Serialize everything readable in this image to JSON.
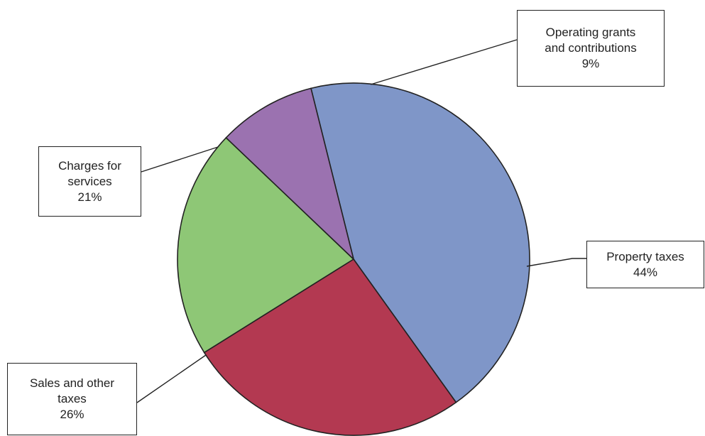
{
  "chart_data": {
    "type": "pie",
    "title": "",
    "start_angle_deg": 104,
    "direction": "clockwise",
    "slices": [
      {
        "label_lines": [
          "Property taxes",
          "44%"
        ],
        "value": 44,
        "color": "#7f96c8"
      },
      {
        "label_lines": [
          "Sales and other",
          "taxes",
          "26%"
        ],
        "value": 26,
        "color": "#b33951"
      },
      {
        "label_lines": [
          "Charges for",
          "services",
          "21%"
        ],
        "value": 21,
        "color": "#8ec776"
      },
      {
        "label_lines": [
          "Operating grants",
          "and contributions",
          "9%"
        ],
        "value": 9,
        "color": "#9b72b0"
      }
    ]
  }
}
